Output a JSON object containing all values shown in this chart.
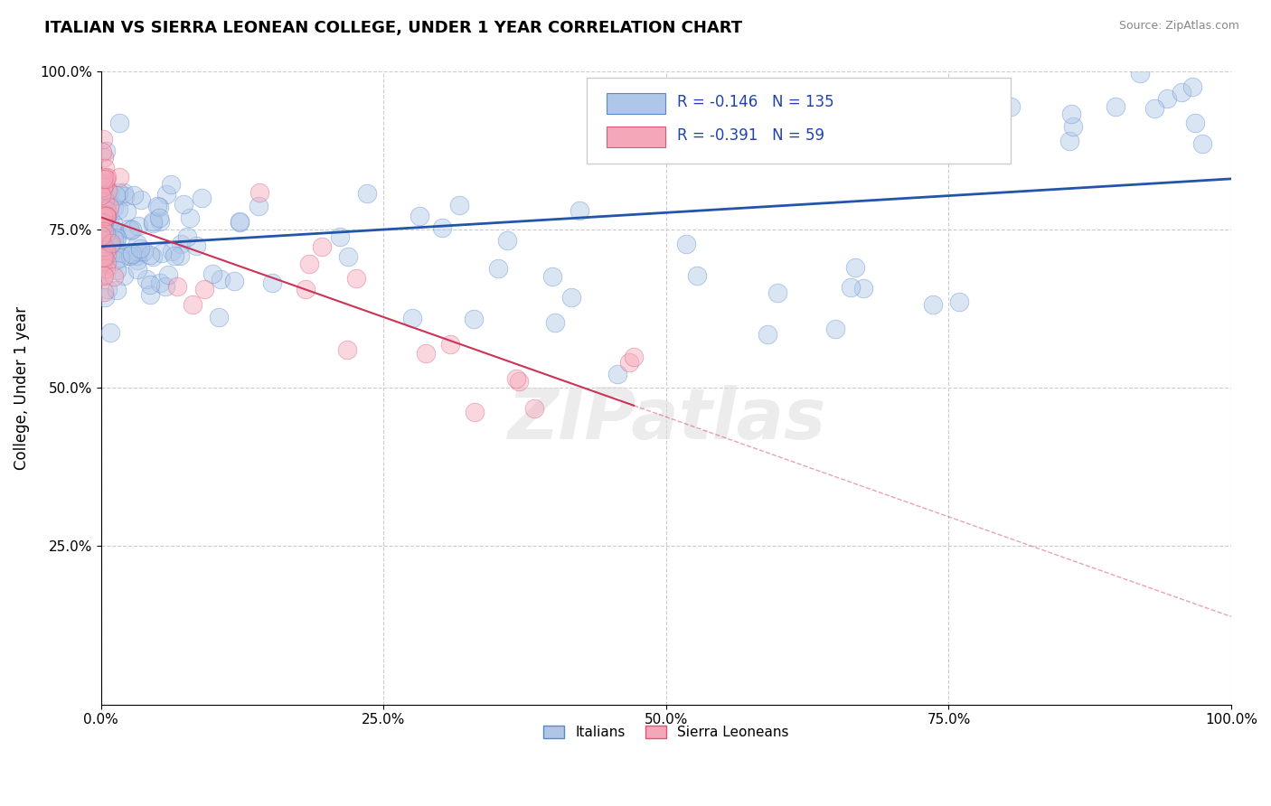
{
  "title": "ITALIAN VS SIERRA LEONEAN COLLEGE, UNDER 1 YEAR CORRELATION CHART",
  "source_text": "Source: ZipAtlas.com",
  "ylabel": "College, Under 1 year",
  "xlim": [
    0.0,
    1.0
  ],
  "ylim": [
    0.0,
    1.0
  ],
  "xtick_labels": [
    "0.0%",
    "25.0%",
    "50.0%",
    "75.0%",
    "100.0%"
  ],
  "xtick_vals": [
    0.0,
    0.25,
    0.5,
    0.75,
    1.0
  ],
  "ytick_labels": [
    "25.0%",
    "50.0%",
    "75.0%",
    "100.0%"
  ],
  "ytick_vals": [
    0.25,
    0.5,
    0.75,
    1.0
  ],
  "watermark": "ZIPatlas",
  "legend_R_italian": "-0.146",
  "legend_N_italian": "135",
  "legend_R_sierra": "-0.391",
  "legend_N_sierra": "59",
  "italian_color": "#aec6e8",
  "sierra_color": "#f4a7b9",
  "italian_line_color": "#2255aa",
  "sierra_line_color": "#cc3355",
  "italian_edge_color": "#5588cc",
  "sierra_edge_color": "#dd5577",
  "legend_text_color": "#2244aa",
  "title_fontsize": 13
}
